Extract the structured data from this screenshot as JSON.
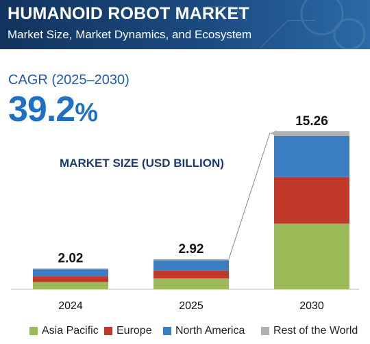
{
  "banner": {
    "title": "HUMANOID ROBOT MARKET",
    "subtitle": "Market Size, Market Dynamics, and Ecosystem"
  },
  "cagr": {
    "label": "CAGR (2025–2030)",
    "value": "39.2",
    "unit": "%"
  },
  "chart_heading": "MARKET SIZE (USD BILLION)",
  "colors": {
    "asia_pacific": "#9bbb59",
    "europe": "#c0392b",
    "north_america": "#3a7dc2",
    "rest_of_world": "#b0b0b0"
  },
  "chart_data": {
    "type": "bar",
    "stacked": true,
    "categories": [
      "2024",
      "2025",
      "2030"
    ],
    "totals": [
      2.02,
      2.92,
      15.26
    ],
    "total_labels": [
      "2.02",
      "2.92",
      "15.26"
    ],
    "series": [
      {
        "name": "Asia Pacific",
        "values": [
          0.7,
          1.05,
          6.35
        ]
      },
      {
        "name": "Europe",
        "values": [
          0.55,
          0.75,
          4.5
        ]
      },
      {
        "name": "North America",
        "values": [
          0.67,
          1.0,
          3.95
        ]
      },
      {
        "name": "Rest of the World",
        "values": [
          0.1,
          0.12,
          0.46
        ]
      }
    ],
    "title": "MARKET SIZE (USD BILLION)",
    "grid": false,
    "legend": "bottom"
  },
  "legend": [
    {
      "label": "Asia Pacific",
      "color": "#9bbb59"
    },
    {
      "label": "Europe",
      "color": "#c0392b"
    },
    {
      "label": "North America",
      "color": "#3a7dc2"
    },
    {
      "label": "Rest of the World",
      "color": "#b0b0b0"
    }
  ]
}
